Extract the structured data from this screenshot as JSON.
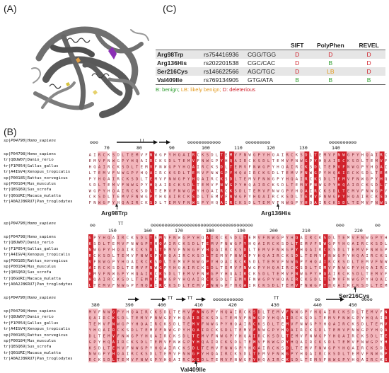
{
  "panels": {
    "a": "(A)",
    "b": "(B)",
    "c": "(C)"
  },
  "table_c": {
    "headers": [
      "",
      "",
      "",
      "SIFT",
      "PolyPhen",
      "REVEL"
    ],
    "rows": [
      {
        "variant": "Arg98Trp",
        "rsid": "rs754416936",
        "codon": "CGG/TGG",
        "sift": "D",
        "polyphen": "D",
        "revel": "D"
      },
      {
        "variant": "Arg136His",
        "rsid": "rs202201538",
        "codon": "CGC/CAC",
        "sift": "D",
        "polyphen": "B",
        "revel": "D"
      },
      {
        "variant": "Ser216Cys",
        "rsid": "rs146622566",
        "codon": "AGC/TGC",
        "sift": "D",
        "polyphen": "LB",
        "revel": "D"
      },
      {
        "variant": "Val409Ile",
        "rsid": "rs769134905",
        "codon": "GTG/ATA",
        "sift": "B",
        "polyphen": "B",
        "revel": "B"
      }
    ],
    "legend": {
      "b": "B: benign;",
      "lb": "LB: likely benign;",
      "d": "D: deleterious"
    }
  },
  "alignment": {
    "reference_title": "sp|P04798|Homo_sapiens",
    "species": [
      "sp|P04798|Homo_sapiens",
      "tr|Q8UW07|Danio_rerio",
      "tr|F1P054|Gallus_gallus",
      "tr|A4IGV4|Xenopus_tropicalis",
      "sp|P00185|Rattus_norvegicus",
      "sp|P00184|Mus_musculus",
      "tr|Q8SQ69|Sus_scrofa",
      "tr|Q6GURI|Macaca_mulatta",
      "tr|A0A2J8KRU7|Pan_troglodytes"
    ],
    "blocks": [
      {
        "ruler": [
          "70",
          "80",
          "90",
          "100",
          "110",
          "120",
          "130",
          "140"
        ],
        "ss_text": "TT",
        "mutations": [
          "Arg98Trp",
          "Arg136His"
        ]
      },
      {
        "ruler": [
          "150",
          "160",
          "170",
          "180",
          "190",
          "200",
          "210",
          "220"
        ],
        "ss_text": "TT",
        "mutations": [
          "Ser216Cys"
        ]
      },
      {
        "ruler": [
          "380",
          "390",
          "400",
          "410",
          "420",
          "430",
          "440",
          "450"
        ],
        "ss_text": "TT",
        "ss_text2": "TT",
        "ss_text3": "TT",
        "mutations": [
          "Val409Ile"
        ]
      }
    ]
  },
  "colors": {
    "strict": "#d0202a",
    "similar": "#f3b6bc",
    "helix": "#111111"
  },
  "protein_icon": "protein-ribbon-structure"
}
